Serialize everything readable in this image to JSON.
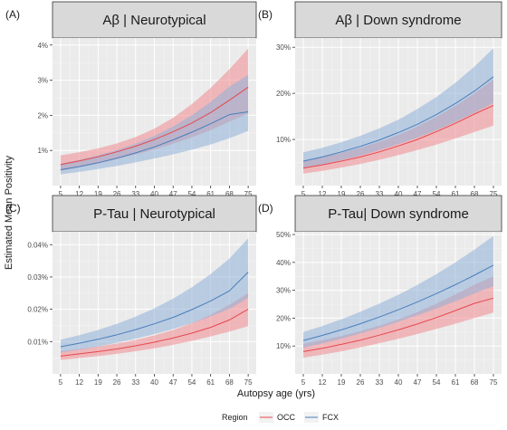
{
  "figure": {
    "ylabel": "Estimated Mean Positivity",
    "xlabel": "Autopsy age (yrs)",
    "legend": {
      "title": "Region",
      "placement": "bottom"
    }
  },
  "colors": {
    "OCC": "#e8474d",
    "FCX": "#4a7ebb",
    "OCC_band": "#f08a90",
    "FCX_band": "#8fb1d9",
    "panel_bg": "#ebebeb",
    "grid_major": "#ffffff",
    "strip_bg": "#d9d9d9"
  },
  "chart_data": [
    {
      "letter": "(A)",
      "title": "Aβ | Neurotypical",
      "type": "line",
      "x_ticks": [
        5,
        12,
        19,
        26,
        33,
        40,
        47,
        54,
        61,
        68,
        75
      ],
      "ylim": [
        0.0,
        4.2
      ],
      "y_ticks": [
        1,
        2,
        3,
        4
      ],
      "y_tick_labels": [
        "1%",
        "2%",
        "3%",
        "4%"
      ],
      "series": [
        {
          "name": "OCC",
          "x": [
            5,
            12,
            19,
            26,
            33,
            40,
            47,
            54,
            61,
            68,
            75
          ],
          "y": [
            0.6,
            0.7,
            0.82,
            0.96,
            1.12,
            1.31,
            1.53,
            1.78,
            2.08,
            2.43,
            2.8
          ],
          "lower": [
            0.42,
            0.52,
            0.63,
            0.75,
            0.88,
            1.03,
            1.19,
            1.37,
            1.58,
            1.82,
            2.05
          ],
          "upper": [
            0.86,
            0.95,
            1.06,
            1.2,
            1.38,
            1.62,
            1.93,
            2.32,
            2.78,
            3.31,
            3.9
          ]
        },
        {
          "name": "FCX",
          "x": [
            5,
            12,
            19,
            26,
            33,
            40,
            47,
            54,
            61,
            68,
            75
          ],
          "y": [
            0.45,
            0.54,
            0.65,
            0.78,
            0.93,
            1.1,
            1.3,
            1.52,
            1.76,
            2.02,
            2.1
          ],
          "lower": [
            0.32,
            0.39,
            0.47,
            0.56,
            0.66,
            0.77,
            0.89,
            1.02,
            1.17,
            1.35,
            1.55
          ],
          "upper": [
            0.62,
            0.73,
            0.86,
            1.01,
            1.19,
            1.41,
            1.68,
            2.0,
            2.38,
            2.82,
            3.15
          ]
        }
      ]
    },
    {
      "letter": "(B)",
      "title": "Aβ | Down syndrome",
      "type": "line",
      "x_ticks": [
        5,
        12,
        19,
        26,
        33,
        40,
        47,
        54,
        61,
        68,
        75
      ],
      "ylim": [
        0.0,
        32.0
      ],
      "y_ticks": [
        10,
        20,
        30
      ],
      "y_tick_labels": [
        "10%",
        "20%",
        "30%"
      ],
      "series": [
        {
          "name": "OCC",
          "x": [
            5,
            12,
            19,
            26,
            33,
            40,
            47,
            54,
            61,
            68,
            75
          ],
          "y": [
            3.8,
            4.5,
            5.3,
            6.2,
            7.3,
            8.6,
            10.0,
            11.7,
            13.5,
            15.5,
            17.4
          ],
          "lower": [
            2.6,
            3.2,
            3.9,
            4.7,
            5.6,
            6.6,
            7.7,
            8.9,
            10.2,
            11.6,
            13.0
          ],
          "upper": [
            5.4,
            6.2,
            7.1,
            8.2,
            9.5,
            11.0,
            12.8,
            14.9,
            17.3,
            20.0,
            23.0
          ]
        },
        {
          "name": "FCX",
          "x": [
            5,
            12,
            19,
            26,
            33,
            40,
            47,
            54,
            61,
            68,
            75
          ],
          "y": [
            5.3,
            6.2,
            7.3,
            8.5,
            9.9,
            11.5,
            13.3,
            15.4,
            17.8,
            20.5,
            23.6
          ],
          "lower": [
            3.8,
            4.6,
            5.5,
            6.5,
            7.7,
            9.0,
            10.4,
            12.0,
            13.8,
            15.8,
            17.9
          ],
          "upper": [
            7.2,
            8.2,
            9.4,
            10.8,
            12.4,
            14.3,
            16.6,
            19.2,
            22.3,
            25.8,
            29.8
          ]
        }
      ]
    },
    {
      "letter": "(C)",
      "title": "P-Tau | Neurotypical",
      "type": "line",
      "x_ticks": [
        5,
        12,
        19,
        26,
        33,
        40,
        47,
        54,
        61,
        68,
        75
      ],
      "ylim": [
        0.0,
        0.044
      ],
      "y_ticks": [
        0.01,
        0.02,
        0.03,
        0.04
      ],
      "y_tick_labels": [
        "0.01%",
        "0.02%",
        "0.03%",
        "0.04%"
      ],
      "series": [
        {
          "name": "OCC",
          "x": [
            5,
            12,
            19,
            26,
            33,
            40,
            47,
            54,
            61,
            68,
            75
          ],
          "y": [
            0.0055,
            0.0062,
            0.0069,
            0.0077,
            0.0087,
            0.0098,
            0.0111,
            0.0126,
            0.0144,
            0.0167,
            0.02
          ],
          "lower": [
            0.0043,
            0.0049,
            0.0055,
            0.0062,
            0.007,
            0.0079,
            0.009,
            0.0102,
            0.0116,
            0.0131,
            0.0148
          ],
          "upper": [
            0.007,
            0.0077,
            0.0085,
            0.0094,
            0.0105,
            0.0119,
            0.0136,
            0.0157,
            0.0183,
            0.0214,
            0.025
          ]
        },
        {
          "name": "FCX",
          "x": [
            5,
            12,
            19,
            26,
            33,
            40,
            47,
            54,
            61,
            68,
            75
          ],
          "y": [
            0.0084,
            0.0095,
            0.0107,
            0.0121,
            0.0137,
            0.0155,
            0.0175,
            0.0199,
            0.0226,
            0.0257,
            0.0315
          ],
          "lower": [
            0.0066,
            0.0075,
            0.0085,
            0.0096,
            0.0109,
            0.0123,
            0.0139,
            0.0157,
            0.0178,
            0.0201,
            0.0235
          ],
          "upper": [
            0.0106,
            0.012,
            0.0136,
            0.0155,
            0.0177,
            0.0203,
            0.0233,
            0.0268,
            0.0309,
            0.0357,
            0.042
          ]
        }
      ]
    },
    {
      "letter": "(D)",
      "title": "P-Tau| Down syndrome",
      "type": "line",
      "x_ticks": [
        5,
        12,
        19,
        26,
        33,
        40,
        47,
        54,
        61,
        68,
        75
      ],
      "ylim": [
        0.0,
        51.0
      ],
      "y_ticks": [
        10,
        20,
        30,
        40,
        50
      ],
      "y_tick_labels": [
        "10%",
        "20%",
        "30%",
        "40%",
        "50%"
      ],
      "series": [
        {
          "name": "OCC",
          "x": [
            5,
            12,
            19,
            26,
            33,
            40,
            47,
            54,
            61,
            68,
            75
          ],
          "y": [
            8.0,
            9.2,
            10.6,
            12.1,
            13.9,
            15.8,
            17.9,
            20.2,
            22.7,
            25.3,
            27.2
          ],
          "lower": [
            5.8,
            6.9,
            8.1,
            9.5,
            11.0,
            12.6,
            14.3,
            16.1,
            18.0,
            20.0,
            22.0
          ],
          "upper": [
            10.8,
            12.1,
            13.6,
            15.3,
            17.3,
            19.6,
            22.2,
            25.2,
            28.5,
            32.0,
            35.0
          ]
        },
        {
          "name": "FCX",
          "x": [
            5,
            12,
            19,
            26,
            33,
            40,
            47,
            54,
            61,
            68,
            75
          ],
          "y": [
            12.0,
            13.8,
            15.8,
            18.0,
            20.4,
            23.0,
            25.8,
            28.8,
            32.0,
            35.4,
            39.0
          ],
          "lower": [
            9.4,
            10.9,
            12.6,
            14.5,
            16.5,
            18.7,
            21.0,
            23.5,
            26.1,
            28.8,
            31.5
          ],
          "upper": [
            15.0,
            17.2,
            19.6,
            22.3,
            25.2,
            28.4,
            31.9,
            35.8,
            40.0,
            44.6,
            49.5
          ]
        }
      ]
    }
  ]
}
